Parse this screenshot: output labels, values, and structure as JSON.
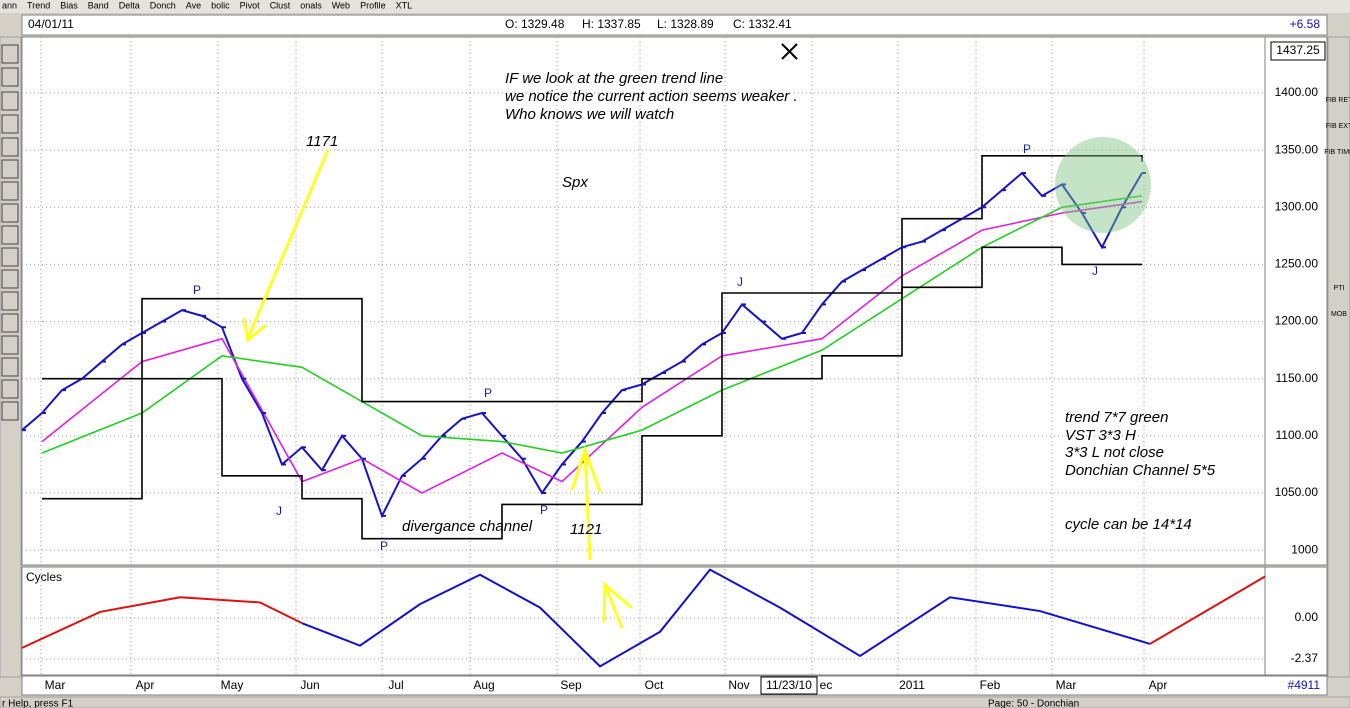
{
  "toolbar": [
    "ann",
    "Trend",
    "Bias",
    "Band",
    "Delta",
    "Donch",
    "Ave",
    "bolic",
    "Pivot",
    "Clust",
    "onals",
    "Web",
    "Profile",
    "XTL"
  ],
  "header": {
    "date": "04/01/11",
    "open": "O: 1329.48",
    "high": "H: 1337.85",
    "low": "L: 1328.89",
    "close": "C: 1332.41",
    "change": "+6.58"
  },
  "right_tools": [
    "FIB RET",
    "FIB EXT",
    "FIB TIME",
    "PTI",
    "MOB"
  ],
  "last_price": "1437.25",
  "cursor_date": "11/23/10",
  "bar_count": "#4911",
  "status": {
    "help": "r Help, press F1",
    "page": "Page: 50 - Donchian"
  },
  "annotations": {
    "note1": "IF we look at the green trend line",
    "note2": "we notice the current action seems weaker .",
    "note3": "Who knows we will watch",
    "level1": "1171",
    "symbol": "Spx",
    "channel": "divergance channel",
    "level2": "1121",
    "legend1": "trend 7*7 green",
    "legend2": "VST 3*3 H",
    "legend3": "3*3 L not close",
    "legend4": "Donchian Channel  5*5",
    "cycle_note": "cycle can be 14*14",
    "pivots": [
      "P",
      "J",
      "P",
      "P",
      "P",
      "J",
      "P",
      "J"
    ]
  },
  "chart_data": {
    "type": "line",
    "xlim": [
      0,
      62.15
    ],
    "xticks": [
      {
        "value": 1.65,
        "label": "Mar"
      },
      {
        "value": 6.15,
        "label": "Apr"
      },
      {
        "value": 10.5,
        "label": "May"
      },
      {
        "value": 14.4,
        "label": "Jun"
      },
      {
        "value": 18.7,
        "label": "Jul"
      },
      {
        "value": 23.1,
        "label": "Aug"
      },
      {
        "value": 27.45,
        "label": "Sep"
      },
      {
        "value": 31.6,
        "label": "Oct"
      },
      {
        "value": 35.85,
        "label": "Nov"
      },
      {
        "value": 40.2,
        "label": "ec"
      },
      {
        "value": 44.5,
        "label": "2011"
      },
      {
        "value": 48.4,
        "label": "Feb"
      },
      {
        "value": 52.2,
        "label": "Mar"
      },
      {
        "value": 56.8,
        "label": "Apr"
      }
    ],
    "ylim": [
      987,
      1449
    ],
    "yticks": [
      {
        "value": 1000,
        "label": "1000"
      },
      {
        "value": 1050,
        "label": "1050.00"
      },
      {
        "value": 1100,
        "label": "1100.00"
      },
      {
        "value": 1150,
        "label": "1150.00"
      },
      {
        "value": 1200,
        "label": "1200.00"
      },
      {
        "value": 1250,
        "label": "1250.00"
      },
      {
        "value": 1300,
        "label": "1300.00"
      },
      {
        "value": 1350,
        "label": "1350.00"
      },
      {
        "value": 1400,
        "label": "1400.00"
      }
    ],
    "grid": true,
    "series": [
      {
        "color": "#1414c8",
        "x": [
          0,
          1,
          2,
          3,
          4,
          5,
          6,
          7,
          8,
          9,
          10,
          11,
          12,
          13,
          14,
          15,
          16,
          17,
          18,
          19,
          20,
          21,
          22,
          23,
          24,
          25,
          26,
          27,
          28,
          29,
          30,
          31,
          32,
          33,
          34,
          35,
          36,
          37,
          38,
          39,
          40,
          41,
          42,
          43,
          44,
          45,
          46,
          47,
          48,
          49,
          50,
          51,
          52,
          53,
          54,
          55,
          56
        ],
        "values": [
          1105,
          1120,
          1140,
          1150,
          1165,
          1180,
          1190,
          1200,
          1210,
          1205,
          1195,
          1150,
          1120,
          1075,
          1090,
          1070,
          1100,
          1080,
          1030,
          1065,
          1080,
          1100,
          1115,
          1120,
          1100,
          1080,
          1050,
          1075,
          1095,
          1120,
          1140,
          1145,
          1155,
          1165,
          1180,
          1190,
          1215,
          1200,
          1185,
          1190,
          1215,
          1235,
          1245,
          1255,
          1265,
          1270,
          1280,
          1290,
          1300,
          1315,
          1330,
          1310,
          1320,
          1295,
          1265,
          1300,
          1330
        ]
      },
      {
        "color": "#e020e0",
        "x": [
          1,
          6,
          10,
          14,
          17,
          20,
          24,
          27,
          31,
          35,
          40,
          44,
          48,
          52,
          56
        ],
        "values": [
          1095,
          1165,
          1185,
          1060,
          1080,
          1050,
          1085,
          1060,
          1125,
          1170,
          1185,
          1240,
          1280,
          1295,
          1305
        ]
      },
      {
        "color": "#22d022",
        "x": [
          1,
          6,
          10,
          14,
          17,
          20,
          24,
          27,
          31,
          35,
          40,
          44,
          48,
          52,
          56
        ],
        "values": [
          1085,
          1120,
          1170,
          1160,
          1130,
          1100,
          1095,
          1085,
          1105,
          1140,
          1175,
          1220,
          1265,
          1300,
          1310
        ]
      },
      {
        "color": "#000000",
        "x": [
          1,
          6,
          10,
          14,
          17,
          20,
          24,
          27,
          31,
          35,
          40,
          44,
          48,
          52,
          56
        ],
        "values": [
          1150,
          1220,
          1220,
          1220,
          1130,
          1130,
          1130,
          1130,
          1150,
          1225,
          1225,
          1290,
          1345,
          1345,
          1340
        ]
      },
      {
        "color": "#000000",
        "x": [
          1,
          6,
          10,
          14,
          17,
          20,
          24,
          27,
          31,
          35,
          40,
          44,
          48,
          52,
          56
        ],
        "values": [
          1045,
          1150,
          1065,
          1045,
          1010,
          1010,
          1040,
          1040,
          1100,
          1150,
          1170,
          1230,
          1265,
          1250,
          1250
        ]
      }
    ]
  },
  "cycles": {
    "title": "Cycles",
    "ylim": [
      -3.3,
      2.95
    ],
    "yticks": [
      {
        "value": 0,
        "label": "0.00"
      },
      {
        "value": -2.37,
        "label": "-2.37"
      }
    ],
    "series": [
      {
        "color": "#e01010",
        "x": [
          0,
          3.9,
          7.9,
          11.9,
          14
        ],
        "values": [
          -1.73,
          0.35,
          1.2,
          0.9,
          -0.3
        ]
      },
      {
        "color": "#1010d0",
        "x": [
          14,
          16.9,
          19.9,
          22.9,
          25.9,
          28.9,
          31.9,
          34.4,
          37.9,
          41.9,
          46.4,
          50.9,
          56.4
        ],
        "values": [
          -0.3,
          -1.6,
          0.8,
          2.5,
          0.6,
          -2.8,
          -0.8,
          2.8,
          0.6,
          -2.2,
          1.2,
          0.4,
          -1.5
        ]
      },
      {
        "color": "#e01010",
        "x": [
          56.4,
          62.15
        ],
        "values": [
          -1.5,
          2.4
        ]
      }
    ]
  }
}
